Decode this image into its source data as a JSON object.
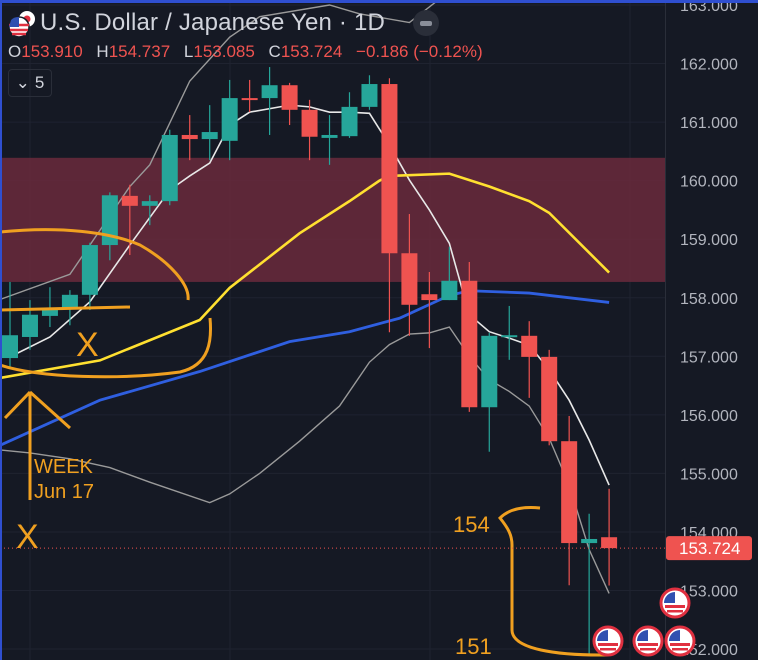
{
  "header": {
    "title": "U.S. Dollar / Japanese Yen · 1D",
    "ohlc": {
      "o_label": "O",
      "o": "153.910",
      "h_label": "H",
      "h": "154.737",
      "l_label": "L",
      "l": "153.085",
      "c_label": "C",
      "c": "153.724",
      "change": "−0.186 (−0.12%)"
    },
    "indicators_count": "5",
    "indicators_chevron": "⌄"
  },
  "colors": {
    "up": "#26a69a",
    "down": "#ef5350",
    "zone": "#6a2a3c",
    "ma_fast": "#e8e8e8",
    "bands": "#9a9a9a",
    "ma_yellow": "#ffe030",
    "ma_blue": "#2f5fe0",
    "annotation": "#f0a020",
    "background": "#151924"
  },
  "chart_data": {
    "type": "candlestick",
    "title": "U.S. Dollar / Japanese Yen · 1D",
    "ylim": [
      152.0,
      163.0
    ],
    "y_ticks": [
      "163.000",
      "162.000",
      "161.000",
      "160.000",
      "159.000",
      "158.000",
      "157.000",
      "156.000",
      "155.000",
      "154.000",
      "153.000",
      "152.000"
    ],
    "current_price": "153.724",
    "candles": [
      [
        156.97,
        158.27,
        156.78,
        157.36
      ],
      [
        157.33,
        157.96,
        157.11,
        157.71
      ],
      [
        157.69,
        158.18,
        157.5,
        157.82
      ],
      [
        157.82,
        158.13,
        157.53,
        158.05
      ],
      [
        158.05,
        158.94,
        157.79,
        158.9
      ],
      [
        158.9,
        159.8,
        158.64,
        159.75
      ],
      [
        159.74,
        159.93,
        158.73,
        159.57
      ],
      [
        159.57,
        159.75,
        159.24,
        159.65
      ],
      [
        159.65,
        160.87,
        159.58,
        160.78
      ],
      [
        160.78,
        161.12,
        160.35,
        160.71
      ],
      [
        160.71,
        161.29,
        160.35,
        160.83
      ],
      [
        160.68,
        161.72,
        160.35,
        161.41
      ],
      [
        161.41,
        161.72,
        161.17,
        161.38
      ],
      [
        161.41,
        161.94,
        160.78,
        161.63
      ],
      [
        161.63,
        161.67,
        160.95,
        161.21
      ],
      [
        161.21,
        161.38,
        160.35,
        160.75
      ],
      [
        160.73,
        161.12,
        160.27,
        160.78
      ],
      [
        160.76,
        161.51,
        160.73,
        161.26
      ],
      [
        161.26,
        161.8,
        161.21,
        161.65
      ],
      [
        161.65,
        161.75,
        157.41,
        158.76
      ],
      [
        158.76,
        159.43,
        157.35,
        157.88
      ],
      [
        158.06,
        158.44,
        157.14,
        157.96
      ],
      [
        157.96,
        158.87,
        157.96,
        158.29
      ],
      [
        158.29,
        158.61,
        156.05,
        156.13
      ],
      [
        156.13,
        157.4,
        155.37,
        157.35
      ],
      [
        157.33,
        157.86,
        156.94,
        157.36
      ],
      [
        157.35,
        157.6,
        156.29,
        156.99
      ],
      [
        156.99,
        157.11,
        155.48,
        155.55
      ],
      [
        155.55,
        155.98,
        153.09,
        153.81
      ],
      [
        153.81,
        154.31,
        151.9,
        153.88
      ],
      [
        153.91,
        154.737,
        153.085,
        153.724
      ]
    ],
    "zone": [
      158.27,
      160.39
    ],
    "lines": [
      {
        "name": "fast-ma",
        "points": [
          [
            0,
            156.99
          ],
          [
            2,
            157.33
          ],
          [
            4,
            157.93
          ],
          [
            6,
            158.9
          ],
          [
            8,
            159.84
          ],
          [
            9,
            160.08
          ],
          [
            10,
            160.3
          ],
          [
            11,
            160.95
          ],
          [
            12,
            161.17
          ],
          [
            14,
            161.29
          ],
          [
            15,
            161.26
          ],
          [
            16,
            161.17
          ],
          [
            17,
            161.17
          ],
          [
            18,
            161.15
          ],
          [
            19,
            160.61
          ],
          [
            20,
            160.01
          ],
          [
            21,
            159.5
          ],
          [
            22,
            158.93
          ],
          [
            23,
            157.71
          ],
          [
            24,
            157.42
          ],
          [
            25,
            157.31
          ],
          [
            26,
            157.19
          ],
          [
            27,
            156.77
          ],
          [
            28,
            156.25
          ],
          [
            29,
            155.57
          ],
          [
            30,
            154.8
          ]
        ]
      },
      {
        "name": "upper-band",
        "points": [
          [
            -0.5,
            157.97
          ],
          [
            3,
            158.4
          ],
          [
            6,
            159.9
          ],
          [
            7,
            160.27
          ],
          [
            9,
            161.7
          ],
          [
            11,
            162.45
          ],
          [
            12.5,
            162.8
          ],
          [
            16,
            163.0
          ],
          [
            17.5,
            162.85
          ],
          [
            20,
            162.7
          ],
          [
            21.5,
            163.1
          ]
        ]
      },
      {
        "name": "lower-band",
        "points": [
          [
            -0.5,
            155.4
          ],
          [
            1,
            155.35
          ],
          [
            3,
            155.25
          ],
          [
            5,
            155.1
          ],
          [
            7,
            154.85
          ],
          [
            10,
            154.5
          ],
          [
            11,
            154.65
          ],
          [
            12.5,
            155.0
          ],
          [
            14.5,
            155.55
          ],
          [
            16.5,
            156.15
          ],
          [
            18,
            156.9
          ],
          [
            19,
            157.2
          ],
          [
            20,
            157.38
          ],
          [
            21,
            157.4
          ],
          [
            22,
            157.5
          ],
          [
            23,
            157.0
          ],
          [
            24,
            156.6
          ],
          [
            25,
            156.4
          ],
          [
            26,
            156.15
          ],
          [
            27,
            155.6
          ],
          [
            28,
            154.8
          ],
          [
            29,
            153.7
          ],
          [
            30,
            152.95
          ]
        ]
      },
      {
        "name": "yellow-ma",
        "points": [
          [
            -0.5,
            156.63
          ],
          [
            4.5,
            156.93
          ],
          [
            9.5,
            157.62
          ],
          [
            11,
            158.17
          ],
          [
            14.5,
            159.1
          ],
          [
            17,
            159.65
          ],
          [
            18.5,
            160.0
          ],
          [
            19,
            160.08
          ],
          [
            22,
            160.12
          ],
          [
            24,
            159.9
          ],
          [
            26,
            159.65
          ],
          [
            27,
            159.45
          ],
          [
            30,
            158.43
          ]
        ]
      },
      {
        "name": "blue-ma",
        "points": [
          [
            -0.5,
            155.48
          ],
          [
            4.5,
            156.25
          ],
          [
            9.5,
            156.74
          ],
          [
            14,
            157.25
          ],
          [
            17,
            157.42
          ],
          [
            19.5,
            157.65
          ],
          [
            22,
            158.04
          ],
          [
            23,
            158.12
          ],
          [
            26,
            158.08
          ],
          [
            30,
            157.92
          ]
        ]
      }
    ],
    "annotations": {
      "x1": "X",
      "x2": "X",
      "week": "WEEK",
      "date": "Jun 17",
      "level_154": "154",
      "level_151": "151"
    }
  }
}
